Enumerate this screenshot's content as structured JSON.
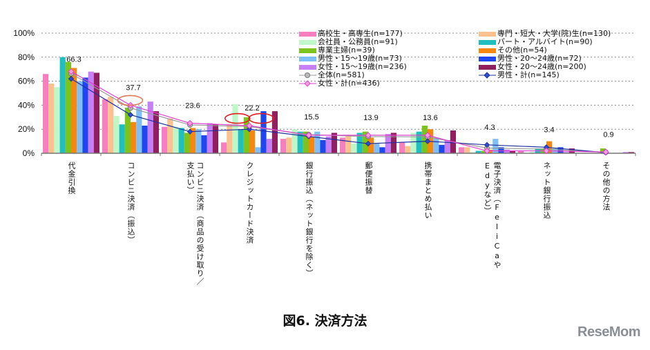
{
  "chart_data": {
    "type": "bar",
    "title": "図6. 決済方法",
    "ylim": [
      0,
      100
    ],
    "yticks": [
      "0%",
      "20%",
      "40%",
      "60%",
      "80%",
      "100%"
    ],
    "grid": true,
    "legend_position": "top-right",
    "categories": [
      "代金引換",
      "コンビニ決済（振込）",
      "コンビニ決済（商品の受け取り／支払い）",
      "クレジットカード決済",
      "銀行振込（ネット銀行を除く）",
      "郵便振替",
      "携帯まとめ払い",
      "電子決済（FeliCaやEdyなど）",
      "ネット銀行振込",
      "その他の方法"
    ],
    "series": [
      {
        "name": "高校生・高専生(n=177)",
        "color": "#f77fbf",
        "values": [
          66,
          45,
          22,
          9,
          12,
          13,
          9,
          5,
          2,
          0
        ]
      },
      {
        "name": "専門・短大・大学(院)生(n=130)",
        "color": "#fbc18f",
        "values": [
          58,
          47,
          29,
          24,
          13,
          15,
          6,
          5,
          0,
          0
        ]
      },
      {
        "name": "会社員・公務員(n=91)",
        "color": "#c0f7c8",
        "values": [
          55,
          31,
          22,
          41,
          20,
          8,
          17,
          1,
          1,
          0
        ]
      },
      {
        "name": "パート・アルバイト(n=90)",
        "color": "#1fbfbf",
        "values": [
          80,
          24,
          21,
          20,
          18,
          17,
          18,
          2,
          4,
          0
        ]
      },
      {
        "name": "専業主婦(n=39)",
        "color": "#7cc31c",
        "values": [
          76,
          38,
          17,
          30,
          18,
          18,
          23,
          2,
          4,
          4
        ]
      },
      {
        "name": "その他(n=54)",
        "color": "#f7870f",
        "values": [
          71,
          26,
          21,
          19,
          14,
          13,
          20,
          3,
          10,
          0
        ]
      },
      {
        "name": "男性・15～19歳(n=73)",
        "color": "#7fbff7",
        "values": [
          60,
          39,
          20,
          5,
          18,
          8,
          13,
          12,
          4,
          0
        ]
      },
      {
        "name": "男性・20～24歳(n=72)",
        "color": "#1f47ef",
        "values": [
          63,
          23,
          15,
          35,
          11,
          5,
          7,
          5,
          5,
          0
        ]
      },
      {
        "name": "女性・15～19歳(n=236)",
        "color": "#c77ff7",
        "values": [
          68,
          43,
          25,
          12,
          14,
          16,
          11,
          3,
          1,
          1
        ]
      },
      {
        "name": "女性・20～24歳(n=200)",
        "color": "#8f1f5f",
        "values": [
          67,
          35,
          24,
          35,
          17,
          17,
          19,
          2,
          4,
          1
        ]
      }
    ],
    "lines": [
      {
        "name": "全体(n=581)",
        "color": "#999999",
        "values": [
          66.3,
          37.7,
          23.6,
          22.2,
          15.5,
          13.9,
          13.6,
          4.3,
          3.4,
          0.9
        ],
        "labels": [
          "66.3",
          "37.7",
          "23.6",
          "22.2",
          "15.5",
          "13.9",
          "13.6",
          "4.3",
          "3.4",
          "0.9"
        ]
      },
      {
        "name": "男性・計(n=145)",
        "color": "#1f2f9f",
        "values": [
          62,
          32,
          18,
          20,
          14,
          8,
          10,
          7,
          5,
          0.5
        ]
      },
      {
        "name": "女性・計(n=436)",
        "color": "#e040d0",
        "values": [
          68,
          40,
          25,
          23,
          15,
          15,
          15,
          2,
          2,
          1
        ]
      }
    ]
  },
  "branding": {
    "logo": "ReseMom"
  }
}
